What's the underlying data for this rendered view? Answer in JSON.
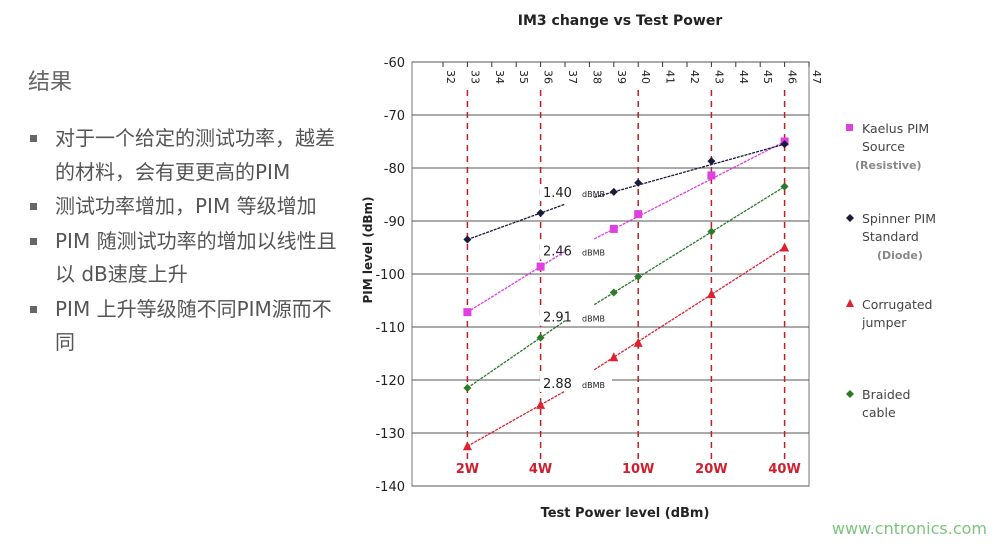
{
  "text": {
    "heading": "结果",
    "bullets": [
      "对于一个给定的测试功率，越差的材料，会有更更高的PIM",
      "测试功率增加，PIM 等级增加",
      "PIM 随测试功率的增加以线性且以 dB速度上升",
      "PIM 上升等级随不同PIM源而不同"
    ]
  },
  "watermark": "www.cntronics.com",
  "chart_data": {
    "type": "scatter",
    "title": "IM3 change vs Test Power",
    "xlabel": "Test Power level (dBm)",
    "ylabel": "PIM level (dBm)",
    "xlim": [
      32,
      47
    ],
    "ylim": [
      -140,
      -60
    ],
    "xticks": [
      32,
      33,
      34,
      35,
      36,
      37,
      38,
      39,
      40,
      41,
      42,
      43,
      44,
      45,
      46,
      47
    ],
    "yticks": [
      -60,
      -70,
      -80,
      -90,
      -100,
      -110,
      -120,
      -130,
      -140
    ],
    "grid": "horizontal",
    "legend": "right",
    "x": [
      33,
      36,
      39,
      40,
      43,
      46
    ],
    "series": [
      {
        "name": "Kaelus PIM Source",
        "sub": "(Resistive)",
        "color": "#e040e0",
        "marker": "square",
        "values": [
          -107.2,
          -98.6,
          -91.5,
          -88.7,
          -81.4,
          -75
        ]
      },
      {
        "name": "Spinner PIM Standard",
        "sub": "(Diode)",
        "color": "#1a1a3a",
        "marker": "diamond",
        "values": [
          -93.5,
          -88.5,
          -84.5,
          -82.8,
          -78.7,
          -75.5
        ]
      },
      {
        "name": "Corrugated jumper",
        "sub": "",
        "color": "#e02030",
        "marker": "triangle",
        "values": [
          -132.5,
          -124.7,
          -115.7,
          -113,
          -103.8,
          -95
        ]
      },
      {
        "name": "Braided cable",
        "sub": "",
        "color": "#2a7a2a",
        "marker": "diamond",
        "values": [
          -121.5,
          -112,
          -103.5,
          -100.5,
          -92,
          -83.5
        ]
      }
    ],
    "annotations": [
      {
        "text": "1.40",
        "unit": "dBMB",
        "y": -85.5
      },
      {
        "text": "2.46",
        "unit": "dBMB",
        "y": -96.5
      },
      {
        "text": "2.91",
        "unit": "dBMB",
        "y": -109
      },
      {
        "text": "2.88",
        "unit": "dBMB",
        "y": -121.5
      }
    ],
    "power_markers": [
      {
        "x": 33,
        "label": "2W"
      },
      {
        "x": 36,
        "label": "4W"
      },
      {
        "x": 40,
        "label": "10W"
      },
      {
        "x": 43,
        "label": "20W"
      },
      {
        "x": 46,
        "label": "40W"
      }
    ]
  }
}
